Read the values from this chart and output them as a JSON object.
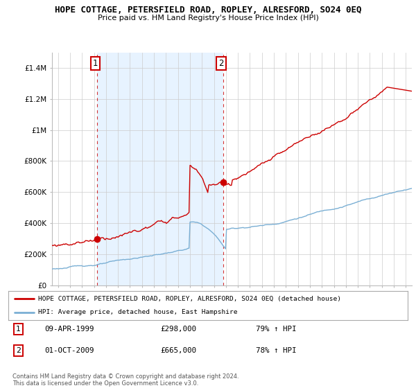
{
  "title": "HOPE COTTAGE, PETERSFIELD ROAD, ROPLEY, ALRESFORD, SO24 0EQ",
  "subtitle": "Price paid vs. HM Land Registry's House Price Index (HPI)",
  "legend_line1": "HOPE COTTAGE, PETERSFIELD ROAD, ROPLEY, ALRESFORD, SO24 0EQ (detached house)",
  "legend_line2": "HPI: Average price, detached house, East Hampshire",
  "annotation1_date": "09-APR-1999",
  "annotation1_price": "£298,000",
  "annotation1_hpi": "79% ↑ HPI",
  "annotation2_date": "01-OCT-2009",
  "annotation2_price": "£665,000",
  "annotation2_hpi": "78% ↑ HPI",
  "footnote": "Contains HM Land Registry data © Crown copyright and database right 2024.\nThis data is licensed under the Open Government Licence v3.0.",
  "house_color": "#cc0000",
  "hpi_color": "#7aafd4",
  "shade_color": "#ddeeff",
  "background_color": "#ffffff",
  "grid_color": "#cccccc",
  "ylim": [
    0,
    1500000
  ],
  "yticks": [
    0,
    200000,
    400000,
    600000,
    800000,
    1000000,
    1200000,
    1400000
  ],
  "ytick_labels": [
    "£0",
    "£200K",
    "£400K",
    "£600K",
    "£800K",
    "£1M",
    "£1.2M",
    "£1.4M"
  ],
  "purchase1_x": 1999.27,
  "purchase1_y": 298000,
  "purchase2_x": 2009.75,
  "purchase2_y": 665000,
  "xlim_start": 1995.5,
  "xlim_end": 2025.5
}
